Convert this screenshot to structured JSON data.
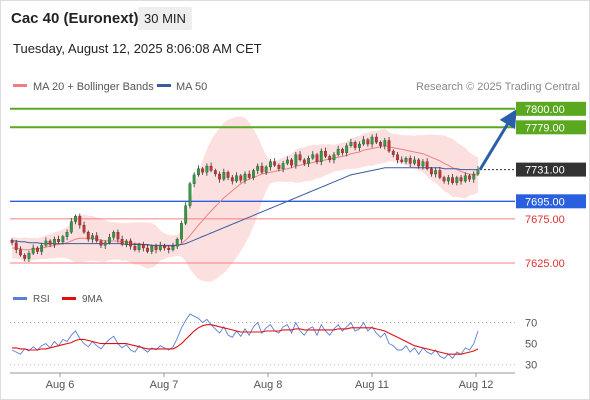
{
  "header": {
    "title": "Cac 40 (Euronext)",
    "timeframe": "30 MIN",
    "datetime": "Tuesday, August 12, 2025 8:06:08 AM CET"
  },
  "legend": {
    "ma20": "MA 20 + Bollinger Bands",
    "ma50": "MA 50",
    "credit": "Research © 2025 Trading Central",
    "ma20_color": "#f08080",
    "ma50_color": "#3a5ba0"
  },
  "rsi_legend": {
    "rsi": "RSI",
    "ma": "9MA",
    "rsi_color": "#5b7fd6",
    "ma_color": "#e01010"
  },
  "chart_data": [
    {
      "type": "candlestick",
      "title": "",
      "x_labels": [
        "Aug 6",
        "Aug 7",
        "Aug 8",
        "Aug 11",
        "Aug 12"
      ],
      "ylim": [
        7600,
        7810
      ],
      "levels": [
        {
          "value": 7800.0,
          "label": "7800.00",
          "style": "resistance",
          "color": "#5aa820"
        },
        {
          "value": 7779.0,
          "label": "7779.00",
          "style": "resistance",
          "color": "#5aa820"
        },
        {
          "value": 7731.0,
          "label": "7731.00",
          "style": "current",
          "color": "#333333"
        },
        {
          "value": 7695.0,
          "label": "7695.00",
          "style": "pivot",
          "color": "#2a60e0"
        },
        {
          "value": 7675.0,
          "label": "7675.00",
          "style": "support",
          "color": "#f08080"
        },
        {
          "value": 7625.0,
          "label": "7625.00",
          "style": "support",
          "color": "#f08080"
        }
      ],
      "forecast_arrow": {
        "from": 7731,
        "to": 7800
      },
      "closes": [
        7648,
        7640,
        7634,
        7630,
        7636,
        7642,
        7638,
        7645,
        7650,
        7646,
        7652,
        7649,
        7655,
        7660,
        7672,
        7678,
        7668,
        7660,
        7652,
        7656,
        7650,
        7645,
        7648,
        7654,
        7660,
        7652,
        7646,
        7650,
        7644,
        7640,
        7646,
        7642,
        7638,
        7644,
        7640,
        7645,
        7642,
        7640,
        7644,
        7652,
        7670,
        7690,
        7715,
        7725,
        7732,
        7728,
        7735,
        7730,
        7726,
        7720,
        7728,
        7722,
        7718,
        7724,
        7719,
        7726,
        7722,
        7730,
        7735,
        7728,
        7734,
        7740,
        7736,
        7732,
        7738,
        7742,
        7736,
        7748,
        7742,
        7738,
        7744,
        7748,
        7740,
        7752,
        7746,
        7742,
        7748,
        7754,
        7750,
        7758,
        7762,
        7756,
        7760,
        7765,
        7760,
        7768,
        7762,
        7758,
        7764,
        7752,
        7748,
        7742,
        7740,
        7744,
        7738,
        7742,
        7735,
        7740,
        7732,
        7726,
        7730,
        7722,
        7718,
        7722,
        7716,
        7722,
        7718,
        7724,
        7720,
        7726,
        7731
      ],
      "ma20": [
        7642,
        7642,
        7641,
        7640,
        7640,
        7641,
        7641,
        7642,
        7643,
        7644,
        7645,
        7646,
        7647,
        7648,
        7650,
        7652,
        7653,
        7653,
        7653,
        7653,
        7652,
        7651,
        7650,
        7650,
        7650,
        7650,
        7649,
        7649,
        7648,
        7647,
        7647,
        7646,
        7645,
        7645,
        7645,
        7645,
        7644,
        7644,
        7644,
        7645,
        7647,
        7651,
        7656,
        7662,
        7668,
        7673,
        7679,
        7684,
        7689,
        7694,
        7699,
        7703,
        7707,
        7711,
        7715,
        7718,
        7720,
        7722,
        7724,
        7726,
        7727,
        7728,
        7729,
        7730,
        7731,
        7732,
        7733,
        7735,
        7736,
        7737,
        7738,
        7739,
        7740,
        7741,
        7742,
        7743,
        7744,
        7745,
        7746,
        7747,
        7749,
        7750,
        7751,
        7753,
        7754,
        7755,
        7756,
        7757,
        7758,
        7757,
        7756,
        7755,
        7754,
        7753,
        7752,
        7751,
        7750,
        7749,
        7747,
        7745,
        7743,
        7741,
        7738,
        7736,
        7733,
        7731,
        7729,
        7727,
        7726,
        7725,
        7725
      ],
      "ma50": [
        7650,
        7650,
        7649,
        7649,
        7648,
        7648,
        7648,
        7647,
        7647,
        7647,
        7647,
        7647,
        7647,
        7647,
        7647,
        7647,
        7647,
        7647,
        7647,
        7647,
        7647,
        7647,
        7647,
        7647,
        7647,
        7647,
        7647,
        7646,
        7646,
        7646,
        7646,
        7646,
        7646,
        7645,
        7645,
        7645,
        7645,
        7645,
        7645,
        7645,
        7646,
        7647,
        7649,
        7651,
        7653,
        7655,
        7657,
        7659,
        7661,
        7663,
        7665,
        7667,
        7669,
        7671,
        7673,
        7675,
        7677,
        7679,
        7681,
        7683,
        7685,
        7687,
        7689,
        7691,
        7693,
        7695,
        7697,
        7699,
        7701,
        7703,
        7705,
        7707,
        7709,
        7711,
        7713,
        7715,
        7717,
        7719,
        7721,
        7723,
        7725,
        7726,
        7727,
        7728,
        7729,
        7730,
        7731,
        7732,
        7733,
        7733,
        7733,
        7733,
        7733,
        7733,
        7733,
        7733,
        7733,
        7733,
        7733,
        7733,
        7733,
        7733,
        7732,
        7732,
        7732,
        7732,
        7731,
        7731,
        7731,
        7731,
        7731
      ]
    },
    {
      "type": "line",
      "title": "RSI",
      "ylim": [
        25,
        80
      ],
      "yticks": [
        70,
        50,
        30
      ],
      "series": [
        {
          "name": "RSI",
          "values": [
            44,
            42,
            40,
            45,
            43,
            47,
            44,
            48,
            50,
            46,
            52,
            48,
            54,
            52,
            58,
            62,
            55,
            50,
            47,
            52,
            48,
            45,
            50,
            54,
            57,
            50,
            46,
            49,
            44,
            42,
            48,
            45,
            42,
            46,
            44,
            48,
            46,
            44,
            47,
            55,
            65,
            72,
            78,
            76,
            74,
            70,
            73,
            68,
            64,
            60,
            66,
            58,
            56,
            62,
            57,
            64,
            58,
            66,
            70,
            60,
            65,
            68,
            62,
            60,
            66,
            68,
            60,
            70,
            62,
            58,
            64,
            66,
            58,
            68,
            62,
            58,
            64,
            68,
            62,
            66,
            70,
            62,
            64,
            70,
            62,
            66,
            60,
            56,
            60,
            50,
            48,
            44,
            44,
            48,
            42,
            46,
            40,
            46,
            42,
            40,
            44,
            38,
            36,
            40,
            36,
            42,
            40,
            46,
            44,
            50,
            62
          ]
        },
        {
          "name": "9MA",
          "values": [
            46,
            46,
            45,
            45,
            44,
            44,
            44,
            45,
            45,
            46,
            47,
            48,
            49,
            50,
            51,
            53,
            54,
            54,
            53,
            52,
            51,
            50,
            50,
            50,
            50,
            50,
            50,
            50,
            49,
            48,
            47,
            46,
            45,
            45,
            45,
            45,
            45,
            45,
            45,
            47,
            50,
            54,
            58,
            62,
            65,
            67,
            68,
            68,
            67,
            66,
            65,
            64,
            63,
            62,
            61,
            61,
            61,
            61,
            61,
            61,
            62,
            62,
            62,
            62,
            63,
            63,
            63,
            64,
            64,
            63,
            63,
            63,
            63,
            63,
            63,
            63,
            63,
            64,
            64,
            64,
            65,
            65,
            65,
            65,
            65,
            65,
            64,
            63,
            62,
            60,
            58,
            56,
            54,
            52,
            50,
            48,
            47,
            46,
            45,
            44,
            43,
            42,
            41,
            40,
            40,
            40,
            40,
            41,
            42,
            43,
            45
          ]
        }
      ]
    }
  ]
}
